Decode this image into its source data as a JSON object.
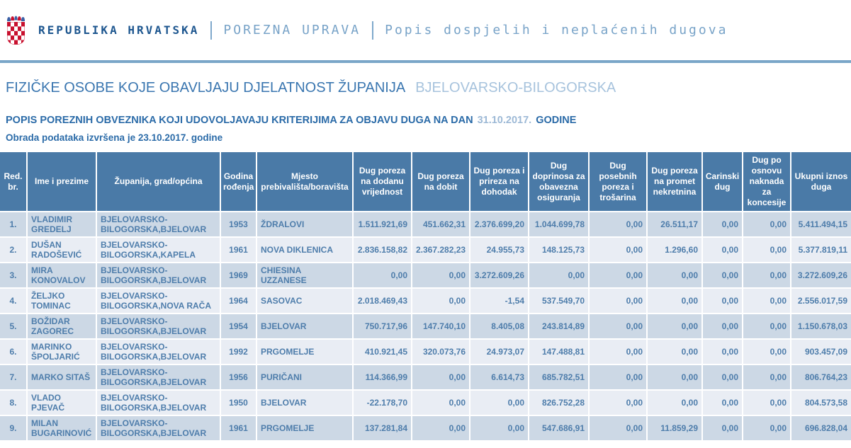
{
  "header": {
    "brand": "REPUBLIKA HRVATSKA",
    "section": "POREZNA UPRAVA",
    "page": "Popis dospjelih i neplaćenih dugova"
  },
  "titles": {
    "main": "FIZIČKE OSOBE KOJE OBAVLJAJU DJELATNOST ŽUPANIJA",
    "county": "BJELOVARSKO-BILOGORSKA",
    "subtitle_prefix": "POPIS POREZNIH OBVEZNIKA KOJI UDOVOLJAVAJU KRITERIJIMA ZA OBJAVU DUGA NA DAN",
    "subtitle_date": "31.10.2017.",
    "subtitle_suffix": "GODINE",
    "processed": "Obrada podataka izvršena je 23.10.2017. godine"
  },
  "icons": {
    "logo": "croatian-coat-of-arms"
  },
  "colors": {
    "brand_dark_blue": "#1d568f",
    "brand_light_blue": "#78a3c8",
    "rule_blue": "#7aa6c8",
    "title_blue": "#3a76b0",
    "title_county_blue": "#a7c3dd",
    "subtitle_blue": "#2b6ba8",
    "subtitle_date_blue": "#9db9d6",
    "table_header_bg": "#4a7aa7",
    "row_odd_bg": "#ccd8e5",
    "row_even_bg": "#e9edf4",
    "row_text": "#4e7dab"
  },
  "table": {
    "columns": [
      "Red. br.",
      "Ime i prezime",
      "Županija, grad/općina",
      "Godina rođenja",
      "Mjesto prebivališta/boravišta",
      "Dug poreza na dodanu vrijednost",
      "Dug poreza na dobit",
      "Dug poreza i prireza na dohodak",
      "Dug doprinosa za obavezna osiguranja",
      "Dug posebnih poreza i trošarina",
      "Dug poreza na promet nekretnina",
      "Carinski dug",
      "Dug po osnovu naknada za koncesije",
      "Ukupni iznos duga"
    ],
    "rows": [
      [
        "1.",
        "VLADIMIR GREDELJ",
        "BJELOVARSKO-BILOGORSKA,BJELOVAR",
        "1953",
        "ŽDRALOVI",
        "1.511.921,69",
        "451.662,31",
        "2.376.699,20",
        "1.044.699,78",
        "0,00",
        "26.511,17",
        "0,00",
        "0,00",
        "5.411.494,15"
      ],
      [
        "2.",
        "DUŠAN RADOŠEVIĆ",
        "BJELOVARSKO-BILOGORSKA,KAPELA",
        "1961",
        "NOVA DIKLENICA",
        "2.836.158,82",
        "2.367.282,23",
        "24.955,73",
        "148.125,73",
        "0,00",
        "1.296,60",
        "0,00",
        "0,00",
        "5.377.819,11"
      ],
      [
        "3.",
        "MIRA KONOVALOV",
        "BJELOVARSKO-BILOGORSKA,BJELOVAR",
        "1969",
        "CHIESINA UZZANESE",
        "0,00",
        "0,00",
        "3.272.609,26",
        "0,00",
        "0,00",
        "0,00",
        "0,00",
        "0,00",
        "3.272.609,26"
      ],
      [
        "4.",
        "ŽELJKO TOMINAC",
        "BJELOVARSKO-BILOGORSKA,NOVA RAČA",
        "1964",
        "SASOVAC",
        "2.018.469,43",
        "0,00",
        "-1,54",
        "537.549,70",
        "0,00",
        "0,00",
        "0,00",
        "0,00",
        "2.556.017,59"
      ],
      [
        "5.",
        "BOŽIDAR ZAGOREC",
        "BJELOVARSKO-BILOGORSKA,BJELOVAR",
        "1954",
        "BJELOVAR",
        "750.717,96",
        "147.740,10",
        "8.405,08",
        "243.814,89",
        "0,00",
        "0,00",
        "0,00",
        "0,00",
        "1.150.678,03"
      ],
      [
        "6.",
        "MARINKO ŠPOLJARIĆ",
        "BJELOVARSKO-BILOGORSKA,BJELOVAR",
        "1992",
        "PRGOMELJE",
        "410.921,45",
        "320.073,76",
        "24.973,07",
        "147.488,81",
        "0,00",
        "0,00",
        "0,00",
        "0,00",
        "903.457,09"
      ],
      [
        "7.",
        "MARKO SITAŠ",
        "BJELOVARSKO-BILOGORSKA,BJELOVAR",
        "1956",
        "PURIČANI",
        "114.366,99",
        "0,00",
        "6.614,73",
        "685.782,51",
        "0,00",
        "0,00",
        "0,00",
        "0,00",
        "806.764,23"
      ],
      [
        "8.",
        "VLADO PJEVAČ",
        "BJELOVARSKO-BILOGORSKA,BJELOVAR",
        "1950",
        "BJELOVAR",
        "-22.178,70",
        "0,00",
        "0,00",
        "826.752,28",
        "0,00",
        "0,00",
        "0,00",
        "0,00",
        "804.573,58"
      ],
      [
        "9.",
        "MILAN BUGARINOVIĆ",
        "BJELOVARSKO-BILOGORSKA,BJELOVAR",
        "1961",
        "PRGOMELJE",
        "137.281,84",
        "0,00",
        "0,00",
        "547.686,91",
        "0,00",
        "11.859,29",
        "0,00",
        "0,00",
        "696.828,04"
      ]
    ]
  }
}
